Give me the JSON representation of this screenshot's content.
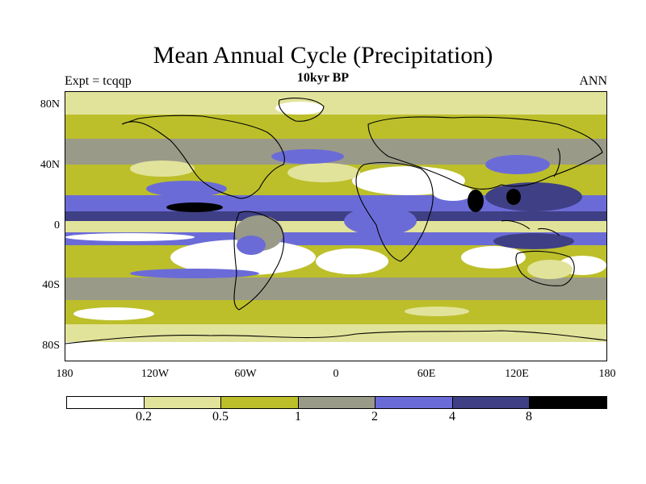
{
  "title": "Mean Annual Cycle (Precipitation)",
  "subtitle": "10kyr BP",
  "left_label": "Expt = tcqqp",
  "right_label": "ANN",
  "lat_labels": [
    "80N",
    "40N",
    "0",
    "40S",
    "80S"
  ],
  "lon_labels": [
    "180",
    "120W",
    "60W",
    "0",
    "60E",
    "120E",
    "180"
  ],
  "legend": {
    "colors": [
      "#ffffff",
      "#e2e39a",
      "#bcbf2a",
      "#9a9a88",
      "#6b6bd8",
      "#3f3f86",
      "#000000"
    ],
    "ticks": [
      "0.2",
      "0.5",
      "1",
      "2",
      "4",
      "8"
    ]
  },
  "colors": {
    "c0": "#ffffff",
    "c1": "#e2e39a",
    "c2": "#bcbf2a",
    "c3": "#9a9a88",
    "c4": "#6b6bd8",
    "c5": "#3f3f86",
    "c6": "#000000"
  }
}
